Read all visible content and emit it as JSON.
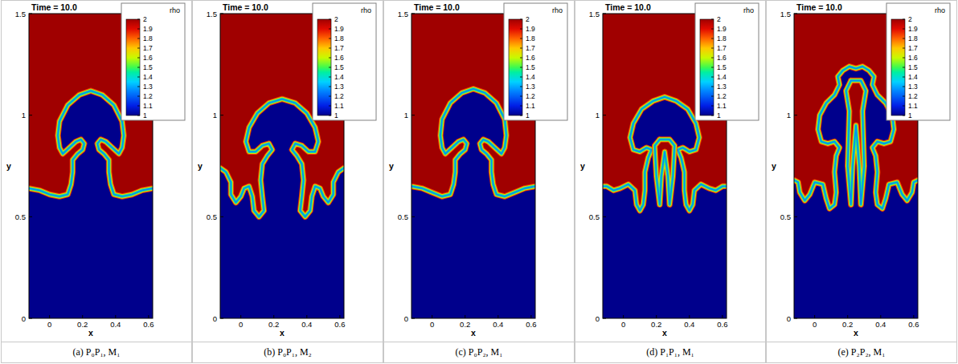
{
  "chart_data": [
    {
      "type": "contour",
      "title": "Time = 10.0",
      "caption": "(a) P₀P₁, M₁",
      "x_label": "x",
      "y_label": "y",
      "xlim": [
        -0.125,
        0.625
      ],
      "ylim": [
        0,
        1.5
      ],
      "xticks": [
        0,
        0.2,
        0.4,
        0.6
      ],
      "yticks": [
        0,
        0.5,
        1,
        1.5
      ],
      "colorbar": {
        "label": "rho",
        "range": [
          1,
          2
        ],
        "ticks": [
          1,
          1.1,
          1.2,
          1.3,
          1.4,
          1.5,
          1.6,
          1.7,
          1.8,
          1.9,
          2
        ]
      },
      "regions": [
        {
          "rho": 2,
          "x": [
            -0.125,
            0.625,
            0.625,
            -0.125
          ],
          "y": [
            0,
            0,
            1.5,
            1.5
          ]
        },
        {
          "rho": 1,
          "x": [
            -0.125,
            -0.125,
            -0.06,
            0.0,
            0.06,
            0.11,
            0.13,
            0.14,
            0.14,
            0.17,
            0.2,
            0.21,
            0.19,
            0.16,
            0.12,
            0.08,
            0.06,
            0.05,
            0.06,
            0.11,
            0.18,
            0.25,
            0.32,
            0.39,
            0.44,
            0.45,
            0.44,
            0.42,
            0.38,
            0.34,
            0.31,
            0.29,
            0.3,
            0.33,
            0.36,
            0.36,
            0.37,
            0.39,
            0.44,
            0.5,
            0.56,
            0.625,
            0.625
          ],
          "y": [
            0,
            0.64,
            0.63,
            0.61,
            0.6,
            0.61,
            0.66,
            0.72,
            0.78,
            0.81,
            0.83,
            0.86,
            0.88,
            0.87,
            0.84,
            0.81,
            0.84,
            0.9,
            0.97,
            1.05,
            1.1,
            1.12,
            1.1,
            1.05,
            0.97,
            0.9,
            0.84,
            0.81,
            0.84,
            0.87,
            0.88,
            0.86,
            0.83,
            0.81,
            0.78,
            0.72,
            0.66,
            0.61,
            0.6,
            0.61,
            0.63,
            0.64,
            0
          ]
        }
      ]
    },
    {
      "type": "contour",
      "title": "Time = 10.0",
      "caption": "(b) P₀P₁, M₂",
      "x_label": "x",
      "y_label": "y",
      "xlim": [
        -0.125,
        0.625
      ],
      "ylim": [
        0,
        1.5
      ],
      "xticks": [
        0,
        0.2,
        0.4,
        0.6
      ],
      "yticks": [
        0,
        0.5,
        1,
        1.5
      ],
      "colorbar": {
        "label": "rho",
        "range": [
          1,
          2
        ],
        "ticks": [
          1,
          1.1,
          1.2,
          1.3,
          1.4,
          1.5,
          1.6,
          1.7,
          1.8,
          1.9,
          2
        ]
      },
      "regions": [
        {
          "rho": 2,
          "x": [
            -0.125,
            0.625,
            0.625,
            -0.125
          ],
          "y": [
            0,
            0,
            1.5,
            1.5
          ]
        },
        {
          "rho": 1,
          "x": [
            -0.125,
            -0.125,
            -0.09,
            -0.06,
            -0.06,
            -0.03,
            0.0,
            0.02,
            0.05,
            0.07,
            0.08,
            0.11,
            0.14,
            0.13,
            0.12,
            0.13,
            0.16,
            0.19,
            0.17,
            0.13,
            0.09,
            0.05,
            0.03,
            0.05,
            0.1,
            0.17,
            0.25,
            0.33,
            0.4,
            0.45,
            0.47,
            0.45,
            0.41,
            0.37,
            0.33,
            0.31,
            0.34,
            0.37,
            0.38,
            0.37,
            0.36,
            0.39,
            0.42,
            0.43,
            0.45,
            0.48,
            0.5,
            0.53,
            0.56,
            0.56,
            0.59,
            0.625,
            0.625
          ],
          "y": [
            0,
            0.74,
            0.72,
            0.67,
            0.61,
            0.57,
            0.6,
            0.64,
            0.65,
            0.6,
            0.53,
            0.5,
            0.53,
            0.6,
            0.68,
            0.76,
            0.8,
            0.83,
            0.86,
            0.85,
            0.82,
            0.82,
            0.87,
            0.94,
            1.01,
            1.06,
            1.08,
            1.06,
            1.01,
            0.94,
            0.87,
            0.82,
            0.82,
            0.85,
            0.86,
            0.83,
            0.8,
            0.76,
            0.68,
            0.6,
            0.53,
            0.5,
            0.53,
            0.6,
            0.65,
            0.64,
            0.6,
            0.57,
            0.61,
            0.67,
            0.72,
            0.74,
            0
          ]
        }
      ]
    },
    {
      "type": "contour",
      "title": "Time = 10.0",
      "caption": "(c) P₀P₂, M₁",
      "x_label": "x",
      "y_label": "y",
      "xlim": [
        -0.125,
        0.625
      ],
      "ylim": [
        0,
        1.5
      ],
      "xticks": [
        0,
        0.2,
        0.4,
        0.6
      ],
      "yticks": [
        0,
        0.5,
        1,
        1.5
      ],
      "colorbar": {
        "label": "rho",
        "range": [
          1,
          2
        ],
        "ticks": [
          1,
          1.1,
          1.2,
          1.3,
          1.4,
          1.5,
          1.6,
          1.7,
          1.8,
          1.9,
          2
        ]
      },
      "regions": [
        {
          "rho": 2,
          "x": [
            -0.125,
            0.625,
            0.625,
            -0.125
          ],
          "y": [
            0,
            0,
            1.5,
            1.5
          ]
        },
        {
          "rho": 1,
          "x": [
            -0.125,
            -0.125,
            -0.06,
            0.0,
            0.06,
            0.11,
            0.13,
            0.14,
            0.14,
            0.17,
            0.2,
            0.21,
            0.19,
            0.16,
            0.12,
            0.08,
            0.06,
            0.05,
            0.06,
            0.11,
            0.18,
            0.25,
            0.32,
            0.39,
            0.44,
            0.45,
            0.44,
            0.42,
            0.38,
            0.34,
            0.31,
            0.29,
            0.3,
            0.33,
            0.36,
            0.36,
            0.37,
            0.39,
            0.44,
            0.5,
            0.56,
            0.625,
            0.625
          ],
          "y": [
            0,
            0.65,
            0.64,
            0.62,
            0.6,
            0.61,
            0.66,
            0.72,
            0.78,
            0.81,
            0.83,
            0.86,
            0.88,
            0.87,
            0.84,
            0.81,
            0.84,
            0.9,
            0.98,
            1.06,
            1.11,
            1.13,
            1.11,
            1.06,
            0.98,
            0.9,
            0.84,
            0.81,
            0.84,
            0.87,
            0.88,
            0.86,
            0.83,
            0.81,
            0.78,
            0.72,
            0.66,
            0.61,
            0.6,
            0.62,
            0.64,
            0.65,
            0
          ]
        }
      ]
    },
    {
      "type": "contour",
      "title": "Time = 10.0",
      "caption": "(d) P₁P₁, M₁",
      "x_label": "x",
      "y_label": "y",
      "xlim": [
        -0.125,
        0.625
      ],
      "ylim": [
        0,
        1.5
      ],
      "xticks": [
        0,
        0.2,
        0.4,
        0.6
      ],
      "yticks": [
        0,
        0.5,
        1,
        1.5
      ],
      "colorbar": {
        "label": "rho",
        "range": [
          1,
          2
        ],
        "ticks": [
          1,
          1.1,
          1.2,
          1.3,
          1.4,
          1.5,
          1.6,
          1.7,
          1.8,
          1.9,
          2
        ]
      },
      "regions": [
        {
          "rho": 2,
          "x": [
            -0.125,
            0.625,
            0.625,
            -0.125
          ],
          "y": [
            0,
            0,
            1.5,
            1.5
          ]
        },
        {
          "rho": 1,
          "x": [
            -0.125,
            -0.125,
            -0.1,
            -0.06,
            -0.02,
            0.03,
            0.07,
            0.08,
            0.1,
            0.12,
            0.13,
            0.13,
            0.15,
            0.17,
            0.14,
            0.1,
            0.06,
            0.04,
            0.06,
            0.11,
            0.18,
            0.25,
            0.32,
            0.39,
            0.44,
            0.46,
            0.44,
            0.4,
            0.36,
            0.33,
            0.35,
            0.37,
            0.37,
            0.38,
            0.4,
            0.42,
            0.43,
            0.47,
            0.52,
            0.56,
            0.6,
            0.625,
            0.625
          ],
          "y": [
            0,
            0.65,
            0.65,
            0.63,
            0.64,
            0.66,
            0.63,
            0.56,
            0.53,
            0.56,
            0.63,
            0.72,
            0.79,
            0.83,
            0.84,
            0.82,
            0.83,
            0.89,
            0.96,
            1.03,
            1.07,
            1.09,
            1.07,
            1.03,
            0.96,
            0.89,
            0.83,
            0.82,
            0.84,
            0.83,
            0.79,
            0.72,
            0.63,
            0.56,
            0.53,
            0.56,
            0.63,
            0.66,
            0.64,
            0.63,
            0.65,
            0.65,
            0
          ]
        },
        {
          "rho": 2,
          "x": [
            0.22,
            0.28,
            0.31,
            0.3,
            0.28,
            0.27,
            0.25,
            0.23,
            0.22,
            0.2,
            0.19
          ],
          "y": [
            0.88,
            0.88,
            0.85,
            0.7,
            0.56,
            0.7,
            0.82,
            0.7,
            0.56,
            0.7,
            0.85
          ]
        }
      ]
    },
    {
      "type": "contour",
      "title": "Time = 10.0",
      "caption": "(e) P₂P₂, M₁",
      "x_label": "x",
      "y_label": "y",
      "xlim": [
        -0.125,
        0.625
      ],
      "ylim": [
        0,
        1.5
      ],
      "xticks": [
        0,
        0.2,
        0.4,
        0.6
      ],
      "yticks": [
        0,
        0.5,
        1,
        1.5
      ],
      "colorbar": {
        "label": "rho",
        "range": [
          1,
          2
        ],
        "ticks": [
          1,
          1.1,
          1.2,
          1.3,
          1.4,
          1.5,
          1.6,
          1.7,
          1.8,
          1.9,
          2
        ]
      },
      "regions": [
        {
          "rho": 2,
          "x": [
            -0.125,
            0.625,
            0.625,
            -0.125
          ],
          "y": [
            0,
            0,
            1.5,
            1.5
          ]
        },
        {
          "rho": 1,
          "x": [
            -0.125,
            -0.125,
            -0.1,
            -0.09,
            -0.06,
            -0.03,
            0.0,
            0.05,
            0.07,
            0.09,
            0.12,
            0.13,
            0.12,
            0.13,
            0.15,
            0.12,
            0.08,
            0.04,
            0.02,
            0.03,
            0.07,
            0.12,
            0.15,
            0.14,
            0.17,
            0.21,
            0.25,
            0.29,
            0.33,
            0.36,
            0.35,
            0.38,
            0.43,
            0.47,
            0.48,
            0.46,
            0.42,
            0.38,
            0.35,
            0.37,
            0.38,
            0.37,
            0.38,
            0.41,
            0.43,
            0.45,
            0.5,
            0.53,
            0.56,
            0.59,
            0.6,
            0.625,
            0.625
          ],
          "y": [
            0,
            0.68,
            0.67,
            0.62,
            0.58,
            0.61,
            0.67,
            0.66,
            0.59,
            0.54,
            0.56,
            0.62,
            0.72,
            0.8,
            0.84,
            0.87,
            0.86,
            0.87,
            0.93,
            1.0,
            1.06,
            1.1,
            1.15,
            1.19,
            1.22,
            1.24,
            1.23,
            1.24,
            1.22,
            1.19,
            1.15,
            1.1,
            1.06,
            1.0,
            0.93,
            0.87,
            0.86,
            0.87,
            0.84,
            0.8,
            0.72,
            0.62,
            0.56,
            0.54,
            0.59,
            0.66,
            0.67,
            0.61,
            0.58,
            0.62,
            0.67,
            0.68,
            0
          ]
        },
        {
          "rho": 2,
          "x": [
            0.22,
            0.28,
            0.31,
            0.29,
            0.3,
            0.28,
            0.27,
            0.25,
            0.23,
            0.22,
            0.2,
            0.21,
            0.19
          ],
          "y": [
            1.17,
            1.17,
            1.12,
            1.02,
            0.75,
            0.56,
            0.75,
            0.95,
            0.75,
            0.56,
            0.75,
            1.02,
            1.12
          ]
        }
      ]
    }
  ]
}
